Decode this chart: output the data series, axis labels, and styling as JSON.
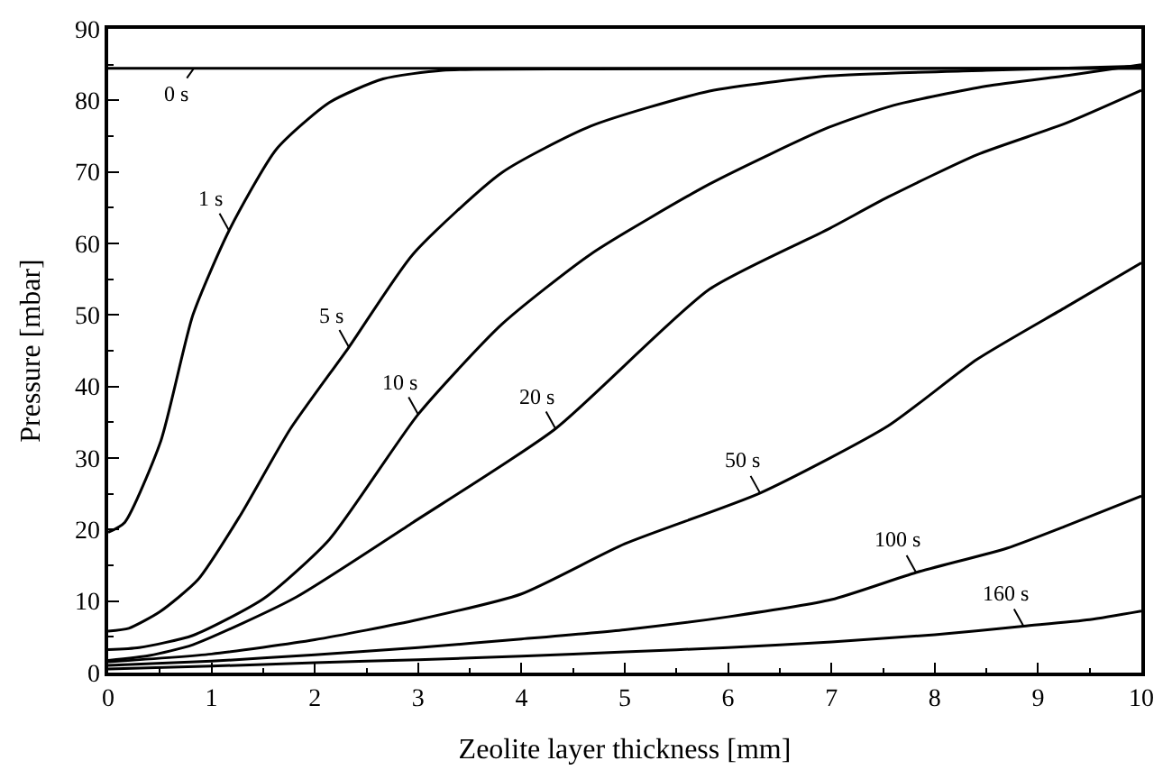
{
  "chart_data": {
    "type": "line",
    "xlabel": "Zeolite layer thickness [mm]",
    "ylabel": "Pressure [mbar]",
    "xlim": [
      0,
      10
    ],
    "ylim": [
      0,
      90
    ],
    "xticks": [
      0,
      1,
      2,
      3,
      4,
      5,
      6,
      7,
      8,
      9,
      10
    ],
    "yticks": [
      0,
      10,
      20,
      30,
      40,
      50,
      60,
      70,
      80,
      90
    ],
    "grid": false,
    "marker": "none",
    "line_style": "solid",
    "series": [
      {
        "color": "#000000",
        "x": [
          0,
          10
        ],
        "values": [
          84.5,
          84.5
        ]
      },
      {
        "color": "#000000",
        "x": [
          0,
          0.16,
          0.51,
          0.82,
          1.17,
          1.63,
          2.14,
          2.66,
          3.24,
          4.67,
          10
        ],
        "values": [
          19.6,
          21,
          32.4,
          50,
          61.8,
          73.2,
          79.7,
          83,
          84.2,
          84.4,
          84.5
        ]
      },
      {
        "color": "#000000",
        "x": [
          0,
          0.2,
          0.5,
          0.87,
          1.28,
          1.76,
          2.33,
          2.95,
          3.81,
          4.67,
          5.82,
          6.97,
          8.5,
          10
        ],
        "values": [
          5.8,
          6.2,
          8.5,
          13,
          22,
          34,
          45.5,
          58.5,
          69.9,
          76.4,
          81.3,
          83.4,
          84.2,
          84.8
        ]
      },
      {
        "color": "#000000",
        "x": [
          0,
          0.3,
          0.82,
          1.51,
          2.14,
          3.0,
          3.81,
          4.67,
          5.82,
          6.97,
          7.6,
          8.5,
          9.3,
          10
        ],
        "values": [
          3.2,
          3.5,
          5.2,
          10.4,
          18.6,
          36.1,
          48.7,
          58.5,
          68.3,
          76.2,
          79.3,
          82,
          83.5,
          85
        ]
      },
      {
        "color": "#000000",
        "x": [
          0,
          0.4,
          0.82,
          1.8,
          2.95,
          4.33,
          5.82,
          6.97,
          7.55,
          8.41,
          9.27,
          10
        ],
        "values": [
          1.7,
          2.4,
          3.9,
          10.4,
          21,
          34.1,
          53.6,
          62,
          66.5,
          72.4,
          76.8,
          81.4
        ]
      },
      {
        "color": "#000000",
        "x": [
          0,
          1,
          2,
          3,
          4,
          5,
          6.31,
          7.55,
          8.41,
          9.27,
          10
        ],
        "values": [
          1.5,
          2.6,
          4.6,
          7.4,
          11,
          18,
          25.1,
          34.5,
          43.8,
          51.1,
          57.3
        ]
      },
      {
        "color": "#000000",
        "x": [
          0,
          1,
          2,
          3,
          4,
          5,
          6,
          7,
          7.82,
          8.7,
          9.27,
          10
        ],
        "values": [
          1.0,
          1.6,
          2.5,
          3.5,
          4.7,
          6.0,
          7.8,
          10.2,
          14,
          17.4,
          20.5,
          24.7
        ]
      },
      {
        "color": "#000000",
        "x": [
          0,
          1,
          2,
          3,
          4,
          5,
          6,
          7,
          8,
          8.86,
          9.5,
          10
        ],
        "values": [
          0.5,
          0.9,
          1.4,
          1.8,
          2.3,
          2.9,
          3.5,
          4.3,
          5.3,
          6.5,
          7.4,
          8.6
        ]
      }
    ],
    "annotations": [
      {
        "text": "0 s",
        "x": 0.83,
        "y": 84.5
      },
      {
        "text": "1 s",
        "x": 1.17,
        "y": 61.8
      },
      {
        "text": "5 s",
        "x": 2.33,
        "y": 45.5
      },
      {
        "text": "10 s",
        "x": 3.0,
        "y": 36.1
      },
      {
        "text": "20 s",
        "x": 4.33,
        "y": 34.1
      },
      {
        "text": "50 s",
        "x": 6.31,
        "y": 25.1
      },
      {
        "text": "100 s",
        "x": 7.82,
        "y": 14
      },
      {
        "text": "160 s",
        "x": 8.86,
        "y": 6.5
      }
    ]
  }
}
